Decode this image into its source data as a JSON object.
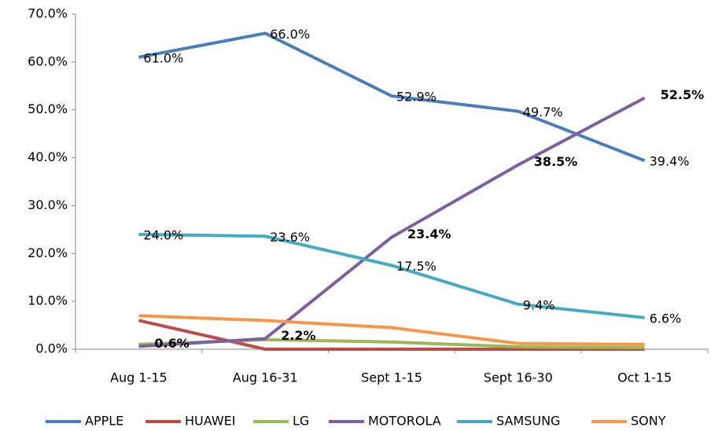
{
  "chart_data": {
    "type": "line",
    "categories": [
      "Aug 1-15",
      "Aug 16-31",
      "Sept 1-15",
      "Sept 16-30",
      "Oct 1-15"
    ],
    "ylim": [
      0,
      70
    ],
    "yticks": [
      {
        "value": 0,
        "label": "0.0%"
      },
      {
        "value": 10,
        "label": "10.0%"
      },
      {
        "value": 20,
        "label": "20.0%"
      },
      {
        "value": 30,
        "label": "30.0%"
      },
      {
        "value": 40,
        "label": "40.0%"
      },
      {
        "value": 50,
        "label": "50.0%"
      },
      {
        "value": 60,
        "label": "60.0%"
      },
      {
        "value": 70,
        "label": "70.0%"
      }
    ],
    "grid": false,
    "legend": "bottom",
    "series": [
      {
        "name": "APPLE",
        "color": "#4a7ebb",
        "values": [
          61.0,
          66.0,
          52.9,
          49.7,
          39.4
        ],
        "value_labels": [
          "61.0%",
          "66.0%",
          "52.9%",
          "49.7%",
          "39.4%"
        ]
      },
      {
        "name": "HUAWEI",
        "color": "#be4b48",
        "values": [
          6.0,
          0,
          0,
          0,
          0
        ]
      },
      {
        "name": "LG",
        "color": "#98b954",
        "values": [
          1.0,
          2.0,
          1.5,
          0.5,
          0.3
        ]
      },
      {
        "name": "MOTOROLA",
        "color": "#7d60a0",
        "values": [
          0.6,
          2.2,
          23.4,
          38.5,
          52.5
        ],
        "value_labels": [
          "0.6%",
          "2.2%",
          "23.4%",
          "38.5%",
          "52.5%"
        ],
        "label_bold": true
      },
      {
        "name": "SAMSUNG",
        "color": "#46aac5",
        "values": [
          24.0,
          23.6,
          17.5,
          9.4,
          6.6
        ],
        "value_labels": [
          "24.0%",
          "23.6%",
          "17.5%",
          "9.4%",
          "6.6%"
        ]
      },
      {
        "name": "SONY",
        "color": "#f79646",
        "values": [
          7.0,
          6.0,
          4.5,
          1.2,
          1.0
        ]
      }
    ]
  }
}
